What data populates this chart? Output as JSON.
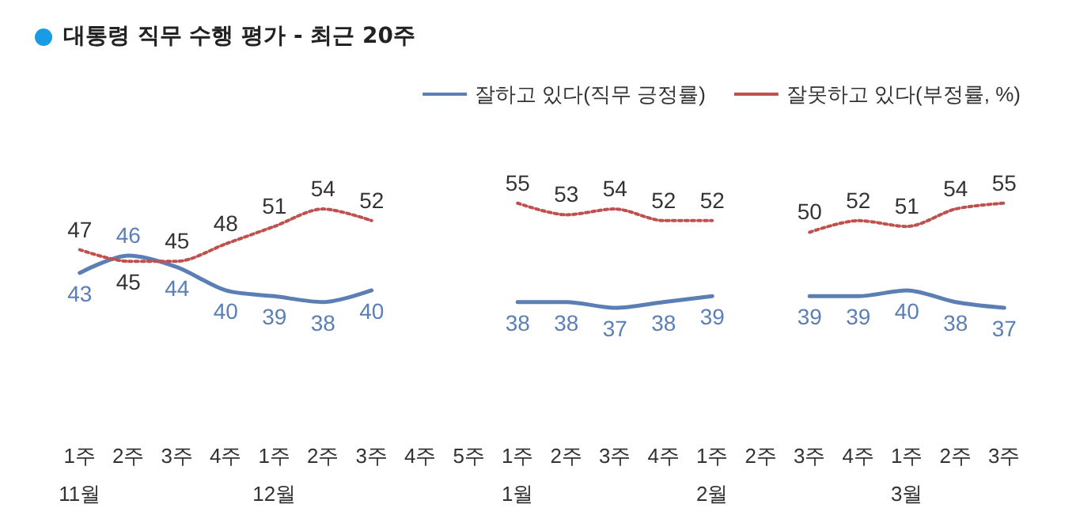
{
  "chart_data": {
    "type": "line",
    "title": "대통령 직무 수행 평가 - 최근 20주",
    "categories": [
      "1주\n11월",
      "2주",
      "3주",
      "4주",
      "1주\n12월",
      "2주",
      "3주",
      "4주",
      "5주",
      "1주\n1월",
      "2주",
      "3주",
      "4주",
      "1주\n2월",
      "2주",
      "3주",
      "4주",
      "1주\n3월",
      "2주",
      "3주"
    ],
    "series": [
      {
        "name": "잘하고 있다(직무 긍정률)",
        "color": "#5b7fb5",
        "line_style": "solid",
        "values": [
          43,
          46,
          44,
          40,
          39,
          38,
          40,
          null,
          null,
          38,
          38,
          37,
          38,
          39,
          null,
          39,
          39,
          40,
          38,
          37
        ]
      },
      {
        "name": "잘못하고 있다(부정률, %)",
        "color": "#c0504d",
        "line_style": "dotted",
        "values": [
          47,
          45,
          45,
          48,
          51,
          54,
          52,
          null,
          null,
          55,
          53,
          54,
          52,
          52,
          null,
          50,
          52,
          51,
          54,
          55
        ]
      }
    ],
    "data_labels": true,
    "legend": "top right",
    "grid": false,
    "marker": "none"
  }
}
